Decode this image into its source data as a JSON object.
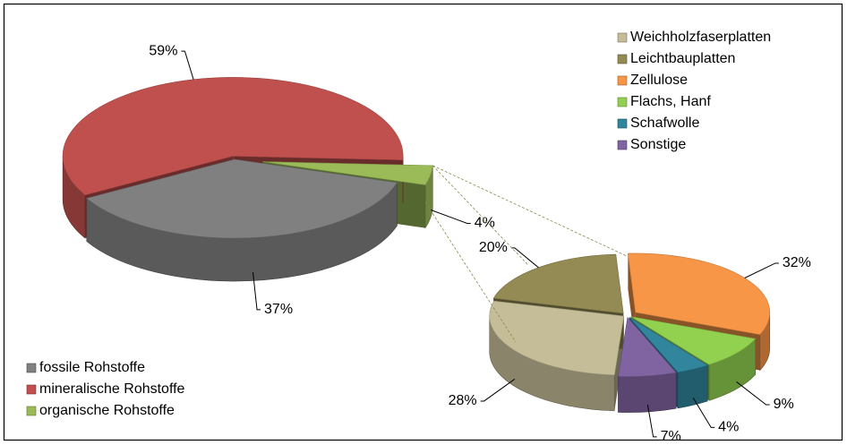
{
  "chart_data": [
    {
      "type": "pie",
      "categories": [
        "fossile Rohstoffe",
        "mineralische Rohstoffe",
        "organische Rohstoffe"
      ],
      "values": [
        37,
        59,
        4
      ],
      "value_labels": [
        "37%",
        "59%",
        "4%"
      ],
      "colors": [
        "#808080",
        "#c0504d",
        "#9bbb59"
      ],
      "legend": "lower left"
    },
    {
      "type": "pie",
      "categories": [
        "Weichholzfaserplatten",
        "Leichtbauplatten",
        "Zellulose",
        "Flachs, Hanf",
        "Schafwolle",
        "Sonstige"
      ],
      "values": [
        28,
        20,
        32,
        9,
        4,
        7
      ],
      "value_labels": [
        "28%",
        "20%",
        "32%",
        "9%",
        "4%",
        "7%"
      ],
      "colors": [
        "#c4bd97",
        "#948a54",
        "#f79646",
        "#92d050",
        "#31859c",
        "#8064a2"
      ],
      "legend": "upper right"
    }
  ]
}
